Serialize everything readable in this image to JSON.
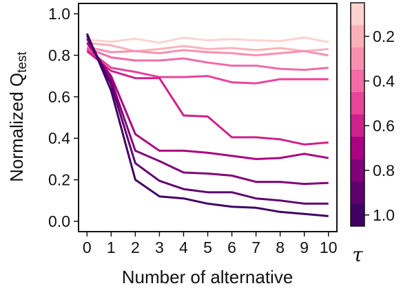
{
  "chart_data": {
    "type": "line",
    "title": "",
    "xlabel": "Number of alternative",
    "ylabel_main": "Normalized Q",
    "ylabel_sub": "test",
    "xlim": [
      -0.35,
      10.35
    ],
    "ylim": [
      -0.05,
      1.05
    ],
    "x": [
      0,
      1,
      2,
      3,
      4,
      5,
      6,
      7,
      8,
      9,
      10
    ],
    "x_tick_labels": [
      "0",
      "1",
      "2",
      "3",
      "4",
      "5",
      "6",
      "7",
      "8",
      "9",
      "10"
    ],
    "y_ticks": [
      0.0,
      0.2,
      0.4,
      0.6,
      0.8,
      1.0
    ],
    "y_tick_labels": [
      "0.0",
      "0.2",
      "0.4",
      "0.6",
      "0.8",
      "1.0"
    ],
    "grid": false,
    "colorbar": {
      "label": "τ",
      "range": [
        0.05,
        1.05
      ],
      "reversed": true,
      "ticks": [
        0.2,
        0.4,
        0.6,
        0.8,
        1.0
      ],
      "tick_labels": [
        "0.2",
        "0.4",
        "0.6",
        "0.8",
        "1.0"
      ],
      "levels": [
        0.1,
        0.2,
        0.3,
        0.4,
        0.5,
        0.6,
        0.7,
        0.8,
        0.9,
        1.0
      ],
      "colors": [
        "#fdd3cf",
        "#fbb1b9",
        "#f88fb1",
        "#f36aa6",
        "#e9439a",
        "#d0208b",
        "#ac0180",
        "#820179",
        "#5e016f",
        "#3f0163"
      ]
    },
    "series": [
      {
        "tau": 0.1,
        "color": "#fdd3cf",
        "values": [
          0.875,
          0.865,
          0.88,
          0.86,
          0.885,
          0.872,
          0.878,
          0.872,
          0.868,
          0.886,
          0.863
        ]
      },
      {
        "tau": 0.2,
        "color": "#fbb1b9",
        "values": [
          0.86,
          0.848,
          0.82,
          0.83,
          0.845,
          0.83,
          0.835,
          0.825,
          0.835,
          0.82,
          0.83
        ]
      },
      {
        "tau": 0.3,
        "color": "#f88fb1",
        "values": [
          0.84,
          0.815,
          0.82,
          0.81,
          0.825,
          0.815,
          0.81,
          0.8,
          0.81,
          0.82,
          0.8
        ]
      },
      {
        "tau": 0.4,
        "color": "#f36aa6",
        "values": [
          0.835,
          0.79,
          0.775,
          0.775,
          0.785,
          0.765,
          0.75,
          0.75,
          0.735,
          0.73,
          0.74
        ]
      },
      {
        "tau": 0.5,
        "color": "#e9439a",
        "values": [
          0.83,
          0.74,
          0.72,
          0.695,
          0.695,
          0.7,
          0.67,
          0.665,
          0.685,
          0.685,
          0.685
        ]
      },
      {
        "tau": 0.6,
        "color": "#d0208b",
        "values": [
          0.82,
          0.725,
          0.69,
          0.69,
          0.51,
          0.505,
          0.405,
          0.405,
          0.395,
          0.37,
          0.38
        ]
      },
      {
        "tau": 0.7,
        "color": "#ac0180",
        "values": [
          0.86,
          0.7,
          0.42,
          0.34,
          0.34,
          0.33,
          0.315,
          0.3,
          0.305,
          0.325,
          0.305
        ]
      },
      {
        "tau": 0.8,
        "color": "#820179",
        "values": [
          0.88,
          0.68,
          0.34,
          0.29,
          0.235,
          0.23,
          0.22,
          0.19,
          0.19,
          0.18,
          0.185
        ]
      },
      {
        "tau": 0.9,
        "color": "#5e016f",
        "values": [
          0.895,
          0.66,
          0.28,
          0.195,
          0.155,
          0.14,
          0.14,
          0.11,
          0.1,
          0.085,
          0.085
        ]
      },
      {
        "tau": 1.0,
        "color": "#3f0163",
        "values": [
          0.905,
          0.63,
          0.2,
          0.12,
          0.11,
          0.085,
          0.07,
          0.065,
          0.045,
          0.035,
          0.025
        ]
      }
    ]
  }
}
